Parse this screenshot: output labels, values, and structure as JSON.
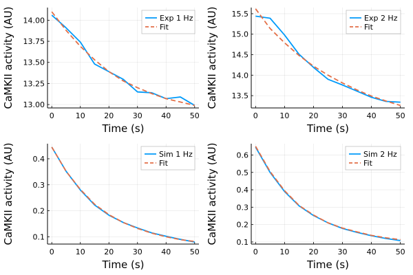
{
  "chart_data": [
    {
      "type": "line",
      "xlabel": "Time (s)",
      "ylabel": "CaMKII activity (AU)",
      "xlim": [
        -1.5,
        51.5
      ],
      "ylim": [
        12.96,
        14.15
      ],
      "xticks": [
        0,
        10,
        20,
        30,
        40,
        50
      ],
      "xtick_labels": [
        "0",
        "10",
        "20",
        "30",
        "40",
        "50"
      ],
      "yticks": [
        13.0,
        13.25,
        13.5,
        13.75,
        14.0
      ],
      "ytick_labels": [
        "13.00",
        "13.25",
        "13.50",
        "13.75",
        "14.00"
      ],
      "grid": true,
      "legend_position": "top-right",
      "series": [
        {
          "name": "Exp 1 Hz",
          "style": "solid",
          "color": "#009AFA",
          "x": [
            0,
            5,
            10,
            15,
            20,
            25,
            30,
            35,
            40,
            45,
            50
          ],
          "y": [
            14.06,
            13.91,
            13.74,
            13.48,
            13.39,
            13.3,
            13.15,
            13.14,
            13.07,
            13.09,
            12.99
          ]
        },
        {
          "name": "Fit",
          "style": "dashed",
          "color": "#E36F47",
          "x": [
            0,
            5,
            10,
            15,
            20,
            25,
            30,
            35,
            40,
            45,
            50
          ],
          "y": [
            14.1,
            13.88,
            13.69,
            13.53,
            13.39,
            13.28,
            13.2,
            13.13,
            13.07,
            13.03,
            12.99
          ]
        }
      ]
    },
    {
      "type": "line",
      "xlabel": "Time (s)",
      "ylabel": "CaMKII activity (AU)",
      "xlim": [
        -1.5,
        51.5
      ],
      "ylim": [
        13.2,
        15.65
      ],
      "xticks": [
        0,
        10,
        20,
        30,
        40,
        50
      ],
      "xtick_labels": [
        "0",
        "10",
        "20",
        "30",
        "40",
        "50"
      ],
      "yticks": [
        13.5,
        14.0,
        14.5,
        15.0,
        15.5
      ],
      "ytick_labels": [
        "13.5",
        "14.0",
        "14.5",
        "15.0",
        "15.5"
      ],
      "grid": true,
      "legend_position": "top-right",
      "series": [
        {
          "name": "Exp 2 Hz",
          "style": "solid",
          "color": "#009AFA",
          "x": [
            0,
            5,
            10,
            15,
            20,
            25,
            30,
            35,
            40,
            45,
            50
          ],
          "y": [
            15.44,
            15.39,
            14.98,
            14.51,
            14.19,
            13.9,
            13.76,
            13.61,
            13.46,
            13.36,
            13.34
          ]
        },
        {
          "name": "Fit",
          "style": "dashed",
          "color": "#E36F47",
          "x": [
            0,
            5,
            10,
            15,
            20,
            25,
            30,
            35,
            40,
            45,
            50
          ],
          "y": [
            15.62,
            15.14,
            14.79,
            14.48,
            14.22,
            14.0,
            13.81,
            13.64,
            13.49,
            13.37,
            13.26
          ]
        }
      ]
    },
    {
      "type": "line",
      "xlabel": "Time (s)",
      "ylabel": "CaMKII activity (AU)",
      "xlim": [
        -1.5,
        51.5
      ],
      "ylim": [
        0.072,
        0.458
      ],
      "xticks": [
        0,
        10,
        20,
        30,
        40,
        50
      ],
      "xtick_labels": [
        "0",
        "10",
        "20",
        "30",
        "40",
        "50"
      ],
      "yticks": [
        0.1,
        0.2,
        0.3,
        0.4
      ],
      "ytick_labels": [
        "0.1",
        "0.2",
        "0.3",
        "0.4"
      ],
      "grid": true,
      "legend_position": "top-right",
      "series": [
        {
          "name": "Sim 1 Hz",
          "style": "solid",
          "color": "#009AFA",
          "x": [
            0,
            5,
            10,
            15,
            20,
            25,
            30,
            35,
            40,
            45,
            50
          ],
          "y": [
            0.445,
            0.352,
            0.28,
            0.222,
            0.183,
            0.155,
            0.134,
            0.115,
            0.102,
            0.09,
            0.08
          ]
        },
        {
          "name": "Fit",
          "style": "dashed",
          "color": "#E36F47",
          "x": [
            0,
            5,
            10,
            15,
            20,
            25,
            30,
            35,
            40,
            45,
            50
          ],
          "y": [
            0.445,
            0.352,
            0.282,
            0.225,
            0.185,
            0.155,
            0.132,
            0.114,
            0.1,
            0.089,
            0.082
          ]
        }
      ]
    },
    {
      "type": "line",
      "xlabel": "Time (s)",
      "ylabel": "CaMKII activity (AU)",
      "xlim": [
        -1.5,
        51.5
      ],
      "ylim": [
        0.088,
        0.665
      ],
      "xticks": [
        0,
        10,
        20,
        30,
        40,
        50
      ],
      "xtick_labels": [
        "0",
        "10",
        "20",
        "30",
        "40",
        "50"
      ],
      "yticks": [
        0.1,
        0.2,
        0.3,
        0.4,
        0.5,
        0.6
      ],
      "ytick_labels": [
        "0.1",
        "0.2",
        "0.3",
        "0.4",
        "0.5",
        "0.6"
      ],
      "grid": true,
      "legend_position": "top-right",
      "series": [
        {
          "name": "Sim 2 Hz",
          "style": "solid",
          "color": "#009AFA",
          "x": [
            0,
            5,
            10,
            15,
            20,
            25,
            30,
            35,
            40,
            45,
            50
          ],
          "y": [
            0.645,
            0.5,
            0.39,
            0.308,
            0.252,
            0.21,
            0.178,
            0.155,
            0.136,
            0.12,
            0.108
          ]
        },
        {
          "name": "Fit",
          "style": "dashed",
          "color": "#E36F47",
          "x": [
            0,
            5,
            10,
            15,
            20,
            25,
            30,
            35,
            40,
            45,
            50
          ],
          "y": [
            0.65,
            0.505,
            0.395,
            0.31,
            0.255,
            0.21,
            0.18,
            0.158,
            0.138,
            0.124,
            0.113
          ]
        }
      ]
    }
  ]
}
